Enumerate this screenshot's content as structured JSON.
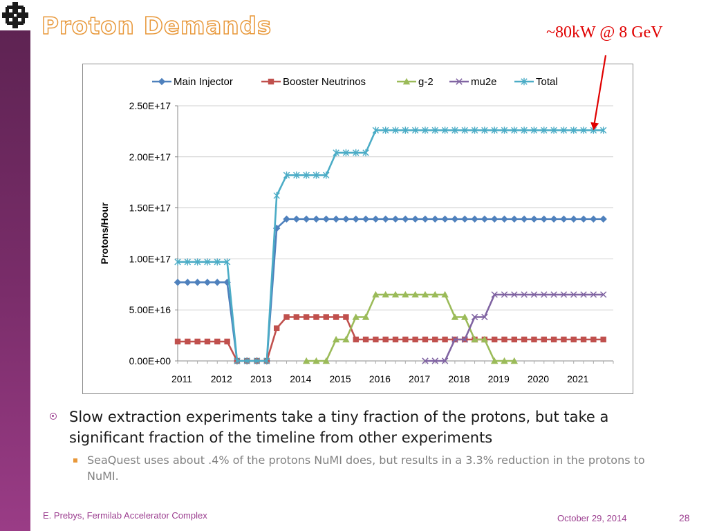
{
  "slide": {
    "title": "Proton Demands",
    "annotation": "~80kW @ 8 GeV",
    "bullets": [
      {
        "text": "Slow extraction experiments take a tiny fraction of the protons, but take a significant fraction of the timeline from other experiments",
        "sub": "SeaQuest uses about .4% of the protons NuMI does, but results in a 3.3% reduction in the protons to NuMI."
      }
    ],
    "footer_left": "E. Prebys, Fermilab Accelerator Complex",
    "footer_date": "October 29, 2014",
    "page_number": "28"
  },
  "chart_data": {
    "type": "line",
    "title": "",
    "xlabel": "",
    "ylabel": "Protons/Hour",
    "xlim": [
      2011,
      2022
    ],
    "ylim": [
      0,
      2.5e+17
    ],
    "x_ticks": [
      "2011",
      "2012",
      "2013",
      "2014",
      "2015",
      "2016",
      "2017",
      "2018",
      "2019",
      "2020",
      "2021"
    ],
    "y_ticks": [
      "0.00E+00",
      "5.00E+16",
      "1.00E+17",
      "1.50E+17",
      "2.00E+17",
      "2.50E+17"
    ],
    "grid": "horizontal",
    "legend": "top",
    "series": [
      {
        "name": "Main Injector",
        "color": "#4f81bd",
        "marker": "diamond",
        "points": [
          [
            2011,
            7.7e+16
          ],
          [
            2011.25,
            7.7e+16
          ],
          [
            2011.5,
            7.7e+16
          ],
          [
            2011.75,
            7.7e+16
          ],
          [
            2012,
            7.7e+16
          ],
          [
            2012.25,
            7.7e+16
          ],
          [
            2012.5,
            0
          ],
          [
            2012.75,
            0
          ],
          [
            2013,
            0
          ],
          [
            2013.25,
            0
          ],
          [
            2013.5,
            1.3e+17
          ],
          [
            2013.75,
            1.39e+17
          ],
          [
            2014,
            1.39e+17
          ],
          [
            2014.25,
            1.39e+17
          ],
          [
            2014.5,
            1.39e+17
          ],
          [
            2014.75,
            1.39e+17
          ],
          [
            2015,
            1.39e+17
          ],
          [
            2015.25,
            1.39e+17
          ],
          [
            2015.5,
            1.39e+17
          ],
          [
            2015.75,
            1.39e+17
          ],
          [
            2016,
            1.39e+17
          ],
          [
            2016.25,
            1.39e+17
          ],
          [
            2016.5,
            1.39e+17
          ],
          [
            2016.75,
            1.39e+17
          ],
          [
            2017,
            1.39e+17
          ],
          [
            2017.25,
            1.39e+17
          ],
          [
            2017.5,
            1.39e+17
          ],
          [
            2017.75,
            1.39e+17
          ],
          [
            2018,
            1.39e+17
          ],
          [
            2018.25,
            1.39e+17
          ],
          [
            2018.5,
            1.39e+17
          ],
          [
            2018.75,
            1.39e+17
          ],
          [
            2019,
            1.39e+17
          ],
          [
            2019.25,
            1.39e+17
          ],
          [
            2019.5,
            1.39e+17
          ],
          [
            2019.75,
            1.39e+17
          ],
          [
            2020,
            1.39e+17
          ],
          [
            2020.25,
            1.39e+17
          ],
          [
            2020.5,
            1.39e+17
          ],
          [
            2020.75,
            1.39e+17
          ],
          [
            2021,
            1.39e+17
          ],
          [
            2021.25,
            1.39e+17
          ],
          [
            2021.5,
            1.39e+17
          ],
          [
            2021.75,
            1.39e+17
          ]
        ]
      },
      {
        "name": "Booster Neutrinos",
        "color": "#c0504d",
        "marker": "square",
        "points": [
          [
            2011,
            1.9e+16
          ],
          [
            2011.25,
            1.9e+16
          ],
          [
            2011.5,
            1.9e+16
          ],
          [
            2011.75,
            1.9e+16
          ],
          [
            2012,
            1.9e+16
          ],
          [
            2012.25,
            1.9e+16
          ],
          [
            2012.5,
            0
          ],
          [
            2012.75,
            0
          ],
          [
            2013,
            0
          ],
          [
            2013.25,
            0
          ],
          [
            2013.5,
            3.2e+16
          ],
          [
            2013.75,
            4.3e+16
          ],
          [
            2014,
            4.3e+16
          ],
          [
            2014.25,
            4.3e+16
          ],
          [
            2014.5,
            4.3e+16
          ],
          [
            2014.75,
            4.3e+16
          ],
          [
            2015,
            4.3e+16
          ],
          [
            2015.25,
            4.3e+16
          ],
          [
            2015.5,
            2.1e+16
          ],
          [
            2015.75,
            2.1e+16
          ],
          [
            2016,
            2.1e+16
          ],
          [
            2016.25,
            2.1e+16
          ],
          [
            2016.5,
            2.1e+16
          ],
          [
            2016.75,
            2.1e+16
          ],
          [
            2017,
            2.1e+16
          ],
          [
            2017.25,
            2.1e+16
          ],
          [
            2017.5,
            2.1e+16
          ],
          [
            2017.75,
            2.1e+16
          ],
          [
            2018,
            2.1e+16
          ],
          [
            2018.25,
            2.1e+16
          ],
          [
            2018.5,
            2.1e+16
          ],
          [
            2018.75,
            2.1e+16
          ],
          [
            2019,
            2.1e+16
          ],
          [
            2019.25,
            2.1e+16
          ],
          [
            2019.5,
            2.1e+16
          ],
          [
            2019.75,
            2.1e+16
          ],
          [
            2020,
            2.1e+16
          ],
          [
            2020.25,
            2.1e+16
          ],
          [
            2020.5,
            2.1e+16
          ],
          [
            2020.75,
            2.1e+16
          ],
          [
            2021,
            2.1e+16
          ],
          [
            2021.25,
            2.1e+16
          ],
          [
            2021.5,
            2.1e+16
          ],
          [
            2021.75,
            2.1e+16
          ]
        ]
      },
      {
        "name": "g-2",
        "color": "#9bbb59",
        "marker": "triangle",
        "points": [
          [
            2014.25,
            0
          ],
          [
            2014.5,
            0
          ],
          [
            2014.75,
            0
          ],
          [
            2015,
            2.1e+16
          ],
          [
            2015.25,
            2.1e+16
          ],
          [
            2015.5,
            4.3e+16
          ],
          [
            2015.75,
            4.3e+16
          ],
          [
            2016,
            6.5e+16
          ],
          [
            2016.25,
            6.5e+16
          ],
          [
            2016.5,
            6.5e+16
          ],
          [
            2016.75,
            6.5e+16
          ],
          [
            2017,
            6.5e+16
          ],
          [
            2017.25,
            6.5e+16
          ],
          [
            2017.5,
            6.5e+16
          ],
          [
            2017.75,
            6.5e+16
          ],
          [
            2018,
            4.3e+16
          ],
          [
            2018.25,
            4.3e+16
          ],
          [
            2018.5,
            2.1e+16
          ],
          [
            2018.75,
            2.1e+16
          ],
          [
            2019,
            0
          ],
          [
            2019.25,
            0
          ],
          [
            2019.5,
            0
          ]
        ]
      },
      {
        "name": "mu2e",
        "color": "#8064a2",
        "marker": "x",
        "points": [
          [
            2017.25,
            0
          ],
          [
            2017.5,
            0
          ],
          [
            2017.75,
            0
          ],
          [
            2018,
            2.1e+16
          ],
          [
            2018.25,
            2.1e+16
          ],
          [
            2018.5,
            4.3e+16
          ],
          [
            2018.75,
            4.3e+16
          ],
          [
            2019,
            6.5e+16
          ],
          [
            2019.25,
            6.5e+16
          ],
          [
            2019.5,
            6.5e+16
          ],
          [
            2019.75,
            6.5e+16
          ],
          [
            2020,
            6.5e+16
          ],
          [
            2020.25,
            6.5e+16
          ],
          [
            2020.5,
            6.5e+16
          ],
          [
            2020.75,
            6.5e+16
          ],
          [
            2021,
            6.5e+16
          ],
          [
            2021.25,
            6.5e+16
          ],
          [
            2021.5,
            6.5e+16
          ],
          [
            2021.75,
            6.5e+16
          ]
        ]
      },
      {
        "name": "Total",
        "color": "#4bacc6",
        "marker": "star",
        "points": [
          [
            2011,
            9.7e+16
          ],
          [
            2011.25,
            9.7e+16
          ],
          [
            2011.5,
            9.7e+16
          ],
          [
            2011.75,
            9.7e+16
          ],
          [
            2012,
            9.7e+16
          ],
          [
            2012.25,
            9.7e+16
          ],
          [
            2012.5,
            0
          ],
          [
            2012.75,
            0
          ],
          [
            2013,
            0
          ],
          [
            2013.25,
            0
          ],
          [
            2013.5,
            1.62e+17
          ],
          [
            2013.75,
            1.82e+17
          ],
          [
            2014,
            1.82e+17
          ],
          [
            2014.25,
            1.82e+17
          ],
          [
            2014.5,
            1.82e+17
          ],
          [
            2014.75,
            1.82e+17
          ],
          [
            2015,
            2.04e+17
          ],
          [
            2015.25,
            2.04e+17
          ],
          [
            2015.5,
            2.04e+17
          ],
          [
            2015.75,
            2.04e+17
          ],
          [
            2016,
            2.26e+17
          ],
          [
            2016.25,
            2.26e+17
          ],
          [
            2016.5,
            2.26e+17
          ],
          [
            2016.75,
            2.26e+17
          ],
          [
            2017,
            2.26e+17
          ],
          [
            2017.25,
            2.26e+17
          ],
          [
            2017.5,
            2.26e+17
          ],
          [
            2017.75,
            2.26e+17
          ],
          [
            2018,
            2.26e+17
          ],
          [
            2018.25,
            2.26e+17
          ],
          [
            2018.5,
            2.26e+17
          ],
          [
            2018.75,
            2.26e+17
          ],
          [
            2019,
            2.26e+17
          ],
          [
            2019.25,
            2.26e+17
          ],
          [
            2019.5,
            2.26e+17
          ],
          [
            2019.75,
            2.26e+17
          ],
          [
            2020,
            2.26e+17
          ],
          [
            2020.25,
            2.26e+17
          ],
          [
            2020.5,
            2.26e+17
          ],
          [
            2020.75,
            2.26e+17
          ],
          [
            2021,
            2.26e+17
          ],
          [
            2021.25,
            2.26e+17
          ],
          [
            2021.5,
            2.26e+17
          ],
          [
            2021.75,
            2.26e+17
          ]
        ]
      }
    ],
    "annotation_arrow": {
      "target": [
        2021.5,
        2.26e+17
      ],
      "label": "~80kW @ 8 GeV",
      "color": "#e00000"
    }
  }
}
